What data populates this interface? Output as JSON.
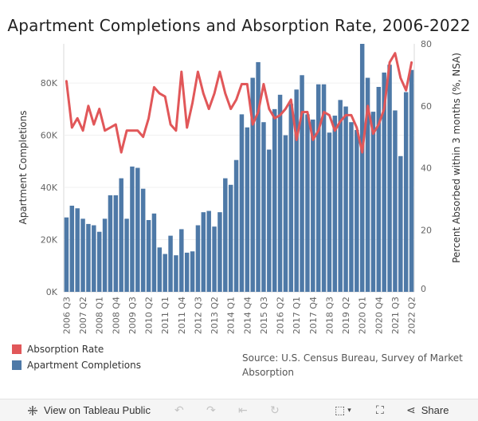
{
  "title": "Apartment Completions and Absorption Rate, 2006-2022",
  "chart_data": {
    "type": "bar+line",
    "title": "Apartment Completions and Absorption Rate, 2006-2022",
    "ylabel_left": "Apartment Completions",
    "ylabel_right": "Percent Absorbed within 3 months (%, NSA)",
    "left_ticks": [
      "0K",
      "20K",
      "40K",
      "60K",
      "80K"
    ],
    "right_ticks": [
      "0",
      "20",
      "40",
      "60",
      "80"
    ],
    "ylim_left": [
      0,
      95000
    ],
    "ylim_right": [
      0,
      80
    ],
    "x_tick_labels": [
      "2006 Q3",
      "2007 Q2",
      "2008 Q1",
      "2008 Q4",
      "2009 Q3",
      "2010 Q2",
      "2011 Q1",
      "2011 Q4",
      "2012 Q3",
      "2013 Q2",
      "2014 Q1",
      "2014 Q4",
      "2015 Q3",
      "2016 Q2",
      "2017 Q1",
      "2017 Q4",
      "2018 Q3",
      "2019 Q2",
      "2020 Q1",
      "2020 Q4",
      "2021 Q3",
      "2022 Q2"
    ],
    "grid": false,
    "series": [
      {
        "name": "Apartment Completions",
        "type": "bar",
        "axis": "left",
        "color": "#4e79a7",
        "x": [
          "2006 Q3",
          "2006 Q4",
          "2007 Q1",
          "2007 Q2",
          "2007 Q3",
          "2007 Q4",
          "2008 Q1",
          "2008 Q2",
          "2008 Q3",
          "2008 Q4",
          "2009 Q1",
          "2009 Q2",
          "2009 Q3",
          "2009 Q4",
          "2010 Q1",
          "2010 Q2",
          "2010 Q3",
          "2010 Q4",
          "2011 Q1",
          "2011 Q2",
          "2011 Q3",
          "2011 Q4",
          "2012 Q1",
          "2012 Q2",
          "2012 Q3",
          "2012 Q4",
          "2013 Q1",
          "2013 Q2",
          "2013 Q3",
          "2013 Q4",
          "2014 Q1",
          "2014 Q2",
          "2014 Q3",
          "2014 Q4",
          "2015 Q1",
          "2015 Q2",
          "2015 Q3",
          "2015 Q4",
          "2016 Q1",
          "2016 Q2",
          "2016 Q3",
          "2016 Q4",
          "2017 Q1",
          "2017 Q2",
          "2017 Q3",
          "2017 Q4",
          "2018 Q1",
          "2018 Q2",
          "2018 Q3",
          "2018 Q4",
          "2019 Q1",
          "2019 Q2",
          "2019 Q3",
          "2019 Q4",
          "2020 Q1",
          "2020 Q2",
          "2020 Q3",
          "2020 Q4",
          "2021 Q1",
          "2021 Q2",
          "2021 Q3",
          "2021 Q4",
          "2022 Q1",
          "2022 Q2"
        ],
        "values": [
          28500,
          33000,
          32000,
          28000,
          26000,
          25500,
          23000,
          28000,
          37000,
          37000,
          43500,
          28000,
          48000,
          47500,
          39500,
          27500,
          30000,
          17000,
          14500,
          21500,
          14000,
          24000,
          15000,
          15500,
          25500,
          30500,
          31000,
          25000,
          30500,
          43500,
          41000,
          50500,
          68000,
          63000,
          82000,
          88000,
          65000,
          54500,
          70000,
          75500,
          60000,
          72000,
          77500,
          83000,
          68000,
          66000,
          79500,
          79500,
          61000,
          67500,
          73500,
          71000,
          65000,
          62000,
          95000,
          82000,
          69000,
          78500,
          84000,
          87000,
          69500,
          52000,
          76500,
          85000
        ]
      },
      {
        "name": "Absorption Rate",
        "type": "line",
        "axis": "right",
        "color": "#e15759",
        "x": [
          "2006 Q3",
          "2006 Q4",
          "2007 Q1",
          "2007 Q2",
          "2007 Q3",
          "2007 Q4",
          "2008 Q1",
          "2008 Q2",
          "2008 Q3",
          "2008 Q4",
          "2009 Q1",
          "2009 Q2",
          "2009 Q3",
          "2009 Q4",
          "2010 Q1",
          "2010 Q2",
          "2010 Q3",
          "2010 Q4",
          "2011 Q1",
          "2011 Q2",
          "2011 Q3",
          "2011 Q4",
          "2012 Q1",
          "2012 Q2",
          "2012 Q3",
          "2012 Q4",
          "2013 Q1",
          "2013 Q2",
          "2013 Q3",
          "2013 Q4",
          "2014 Q1",
          "2014 Q2",
          "2014 Q3",
          "2014 Q4",
          "2015 Q1",
          "2015 Q2",
          "2015 Q3",
          "2015 Q4",
          "2016 Q1",
          "2016 Q2",
          "2016 Q3",
          "2016 Q4",
          "2017 Q1",
          "2017 Q2",
          "2017 Q3",
          "2017 Q4",
          "2018 Q1",
          "2018 Q2",
          "2018 Q3",
          "2018 Q4",
          "2019 Q1",
          "2019 Q2",
          "2019 Q3",
          "2019 Q4",
          "2020 Q1",
          "2020 Q2",
          "2020 Q3",
          "2020 Q4",
          "2021 Q1",
          "2021 Q2",
          "2021 Q3",
          "2021 Q4",
          "2022 Q1",
          "2022 Q2"
        ],
        "values": [
          68,
          53,
          56,
          52,
          60,
          54,
          59,
          52,
          53,
          54,
          45,
          52,
          52,
          52,
          50,
          56,
          66,
          64,
          63,
          54,
          52,
          71,
          53,
          61,
          71,
          64,
          59,
          64,
          71,
          64,
          59,
          62,
          67,
          67,
          54,
          58,
          67,
          59,
          56,
          57,
          59,
          62,
          49,
          58,
          58,
          49,
          52,
          58,
          57,
          52,
          55,
          57,
          57,
          53,
          45,
          60,
          51,
          54,
          59,
          74,
          77,
          69,
          65,
          74
        ]
      }
    ]
  },
  "legend": {
    "items": [
      {
        "label": "Absorption Rate",
        "color": "#e15759"
      },
      {
        "label": "Apartment Completions",
        "color": "#4e79a7"
      }
    ]
  },
  "source": {
    "line1": "Source: U.S. Census Bureau, Survey of Market",
    "line2": "Absorption"
  },
  "toolbar": {
    "view_label": "View on Tableau Public",
    "share_label": "Share",
    "icons": [
      "tableau-logo-icon",
      "undo-icon",
      "redo-icon",
      "revert-icon",
      "refresh-icon",
      "download-icon",
      "fullscreen-icon",
      "share-icon"
    ]
  }
}
